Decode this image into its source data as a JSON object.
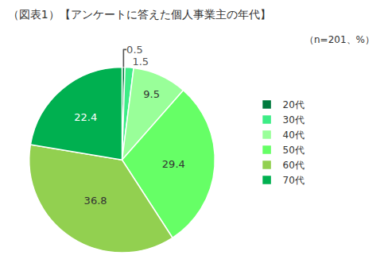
{
  "chart_data": {
    "type": "pie",
    "title": "（図表1）【アンケートに答えた個人事業主の年代】",
    "subtitle": "（n=201、%）",
    "categories": [
      "20代",
      "30代",
      "40代",
      "50代",
      "60代",
      "70代"
    ],
    "values": [
      0.5,
      1.5,
      9.5,
      29.4,
      36.8,
      22.4
    ],
    "colors": [
      "#007a3d",
      "#3ded86",
      "#99ff99",
      "#66ff66",
      "#92d050",
      "#00b050"
    ],
    "data_labels": true,
    "legend": "right"
  }
}
